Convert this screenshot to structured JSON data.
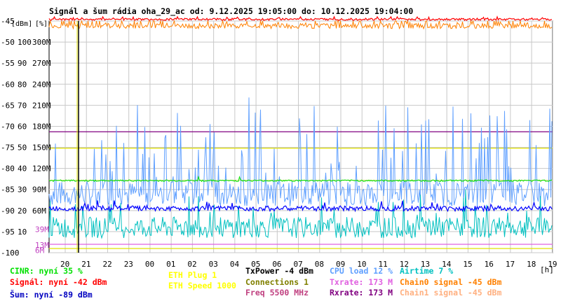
{
  "chart_data": {
    "type": "line",
    "title": "Signál a šum rádia oha_29_ac od: 9.12.2025 19:05:00 do: 10.12.2025 19:04:00",
    "ylabel_left": "[dBm]",
    "ylabel_right": "[%]",
    "xlabel": "[h]",
    "y_dbm_range": [
      -100,
      -45
    ],
    "y_dbm_ticks": [
      "-45",
      "-50",
      "-55",
      "-60",
      "-65",
      "-70",
      "-75",
      "-80",
      "-85",
      "-90",
      "-95",
      "-100"
    ],
    "y_pct_ticks": [
      "100",
      "90",
      "80",
      "70",
      "60",
      "50",
      "40",
      "30",
      "20",
      "10"
    ],
    "y_rate_ticks": [
      "300M",
      "270M",
      "240M",
      "210M",
      "180M",
      "150M",
      "120M",
      "90M",
      "60M"
    ],
    "y_rate_small_ticks": [
      "39M",
      "13M",
      "6M"
    ],
    "x_ticks": [
      "20",
      "21",
      "22",
      "23",
      "00",
      "01",
      "02",
      "03",
      "04",
      "05",
      "06",
      "07",
      "08",
      "09",
      "10",
      "11",
      "12",
      "13",
      "14",
      "15",
      "16",
      "17",
      "18",
      "19"
    ],
    "grid": true,
    "series": [
      {
        "name": "CINR",
        "color": "#00a000",
        "typical_value": 35,
        "unit": "%"
      },
      {
        "name": "Signál",
        "color": "#ff0000",
        "typical_value": -42,
        "unit": "dBm"
      },
      {
        "name": "Šum",
        "color": "#0000ff",
        "typical_value": -89,
        "unit": "dBm"
      },
      {
        "name": "ETH Plug",
        "color": "#ffff00",
        "typical_value": 1
      },
      {
        "name": "ETH Speed",
        "color": "#ffff00",
        "typical_value": 1000
      },
      {
        "name": "TxPower",
        "color": "#000000",
        "typical_value": -4,
        "unit": "dBm"
      },
      {
        "name": "Connections",
        "color": "#808000",
        "typical_value": 1
      },
      {
        "name": "Freq",
        "color": "#c04080",
        "typical_value": 5500,
        "unit": "MHz"
      },
      {
        "name": "CPU load",
        "color": "#60a0ff",
        "typical_value": 12,
        "unit": "%"
      },
      {
        "name": "Txrate",
        "color": "#e060e0",
        "typical_value": 173,
        "unit": "M"
      },
      {
        "name": "Rxrate",
        "color": "#800080",
        "typical_value": 173,
        "unit": "M"
      },
      {
        "name": "Airtime",
        "color": "#00c0c0",
        "typical_value": 7,
        "unit": "%"
      },
      {
        "name": "Chain0 signal",
        "color": "#ff8000",
        "typical_value": -45,
        "unit": "dBm"
      },
      {
        "name": "Chain1 signal",
        "color": "#ffb080",
        "typical_value": -45,
        "unit": "dBm"
      }
    ]
  },
  "legend": {
    "cinr": "CINR: nyní 35 %",
    "signal": "Signál: nyní -42 dBm",
    "noise": "Šum: nyní -89 dBm",
    "eth_plug": "ETH Plug 1",
    "eth_speed": "ETH Speed 1000",
    "txpower": "TxPower -4 dBm",
    "connections": "Connections 1",
    "freq": "Freq 5500 MHz",
    "cpu": "CPU load 12 %",
    "txrate": "Txrate: 173 M",
    "rxrate": "Rxrate: 173 M",
    "airtime": "Airtime 7 %",
    "chain0": "Chain0 signal -45 dBm",
    "chain1": "Chain1 signal -45 dBm"
  },
  "colors": {
    "cinr": "#00e000",
    "signal": "#ff0000",
    "noise": "#0000ff",
    "eth": "#ffff00",
    "txpower": "#000000",
    "connections": "#808000",
    "freq": "#c04080",
    "cpu": "#60a0ff",
    "txrate": "#e060e0",
    "rxrate": "#800080",
    "airtime": "#00c0c0",
    "chain0": "#ff8000",
    "chain1": "#ffb080",
    "grid": "#c8c8c8"
  }
}
